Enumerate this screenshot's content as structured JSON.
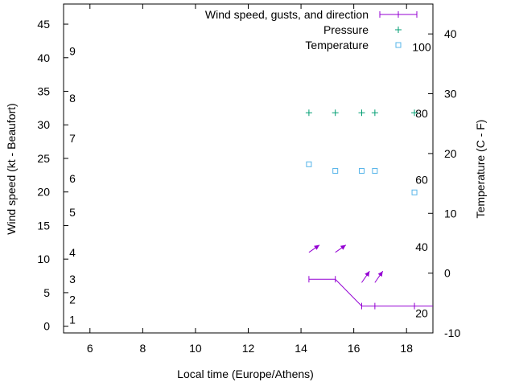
{
  "chart_data": {
    "type": "line",
    "xlabel": "Local time (Europe/Athens)",
    "ylabel_left": "Wind speed (kt - Beaufort)",
    "ylabel_right": "Temperature (C - F)",
    "xlim": [
      5,
      19
    ],
    "ylim_left": [
      -1,
      48
    ],
    "ylim_right": [
      -10,
      45
    ],
    "x_ticks": [
      6,
      8,
      10,
      12,
      14,
      16,
      18
    ],
    "y_ticks_left": [
      0,
      5,
      10,
      15,
      20,
      25,
      30,
      35,
      40,
      45
    ],
    "y_ticks_right": [
      -10,
      0,
      10,
      20,
      30,
      40
    ],
    "beaufort_labels": [
      {
        "text": "1",
        "y": 1
      },
      {
        "text": "2",
        "y": 4
      },
      {
        "text": "3",
        "y": 7
      },
      {
        "text": "4",
        "y": 11
      },
      {
        "text": "5",
        "y": 17
      },
      {
        "text": "6",
        "y": 22
      },
      {
        "text": "7",
        "y": 28
      },
      {
        "text": "8",
        "y": 34
      },
      {
        "text": "9",
        "y": 41
      }
    ],
    "fahrenheit_labels": [
      {
        "text": "20",
        "y": -6.7
      },
      {
        "text": "40",
        "y": 4.4
      },
      {
        "text": "60",
        "y": 15.6
      },
      {
        "text": "80",
        "y": 26.7
      },
      {
        "text": "100",
        "y": 37.8
      }
    ],
    "legend": {
      "position": "top-right",
      "entries": [
        "Wind speed, gusts, and direction",
        "Pressure",
        "Temperature"
      ]
    },
    "series": [
      {
        "name": "Wind speed, gusts, and direction",
        "color": "#9400d3",
        "x": [
          14.3,
          15.3,
          16.3,
          16.8,
          18.3,
          19
        ],
        "y": [
          7,
          7,
          3,
          3,
          3,
          3
        ],
        "arrows": [
          {
            "x": 14.3,
            "y": 11,
            "dx": 0.4,
            "dy": 1.1
          },
          {
            "x": 15.3,
            "y": 11,
            "dx": 0.4,
            "dy": 1.1
          },
          {
            "x": 16.3,
            "y": 6.5,
            "dx": 0.3,
            "dy": 1.7
          },
          {
            "x": 16.8,
            "y": 6.5,
            "dx": 0.3,
            "dy": 1.7
          }
        ]
      },
      {
        "name": "Pressure",
        "color": "#009e73",
        "x": [
          14.3,
          15.3,
          16.3,
          16.8,
          18.3
        ],
        "y": [
          31.8,
          31.8,
          31.8,
          31.8,
          31.8
        ]
      },
      {
        "name": "Temperature",
        "color": "#56b4e9",
        "x": [
          14.3,
          15.3,
          16.3,
          16.8,
          18.3
        ],
        "y": [
          18.2,
          17.1,
          17.1,
          17.1,
          13.5
        ],
        "axis": "right"
      }
    ]
  }
}
